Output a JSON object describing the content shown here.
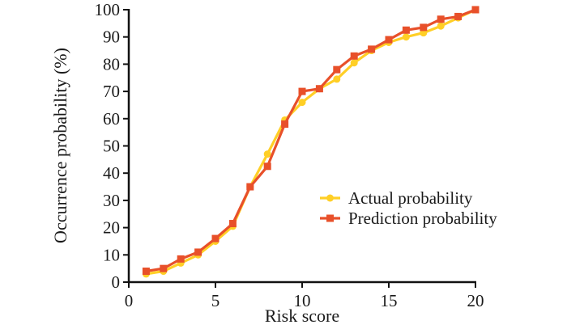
{
  "chart_data": {
    "type": "line",
    "title": "",
    "xlabel": "Risk score",
    "ylabel": "Occurrence probability (%)",
    "xlim": [
      0,
      20
    ],
    "ylim": [
      0,
      100
    ],
    "xticks": [
      0,
      5,
      10,
      15,
      20
    ],
    "yticks": [
      0,
      10,
      20,
      30,
      40,
      50,
      60,
      70,
      80,
      90,
      100
    ],
    "grid": false,
    "legend_position": "center-right",
    "x": [
      1,
      2,
      3,
      4,
      5,
      6,
      7,
      8,
      9,
      10,
      11,
      12,
      13,
      14,
      15,
      16,
      17,
      18,
      19,
      20
    ],
    "series": [
      {
        "name": "Actual probability",
        "marker": "circle",
        "color": "#FFCF26",
        "values": [
          3,
          4,
          7,
          10,
          15,
          20.5,
          35,
          47,
          59.5,
          66,
          71,
          74.5,
          80.5,
          85,
          88,
          90,
          91.5,
          94,
          97,
          100
        ]
      },
      {
        "name": "Prediction probability",
        "marker": "square",
        "color": "#E8502A",
        "values": [
          4,
          5,
          8.5,
          11,
          16,
          21.5,
          35,
          42.5,
          58,
          70,
          71,
          78,
          83,
          85.5,
          89,
          92.5,
          93.5,
          96.5,
          97.5,
          100
        ]
      }
    ]
  }
}
